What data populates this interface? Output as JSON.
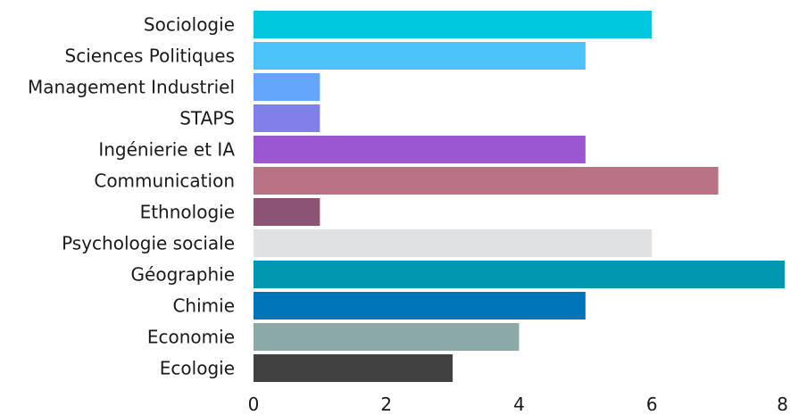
{
  "chart_data": {
    "type": "bar",
    "orientation": "horizontal",
    "categories": [
      "Sociologie",
      "Sciences Politiques",
      "Management Industriel",
      "STAPS",
      "Ingénierie et IA",
      "Communication",
      "Ethnologie",
      "Psychologie sociale",
      "Géographie",
      "Chimie",
      "Economie",
      "Ecologie"
    ],
    "values": [
      6,
      5,
      1,
      1,
      5,
      7,
      1,
      6,
      8,
      5,
      4,
      3
    ],
    "colors": [
      "#00c9df",
      "#4cc4fa",
      "#63a6fb",
      "#8180e9",
      "#9b57cf",
      "#b97385",
      "#8d5375",
      "#e0e1e3",
      "#0097b1",
      "#0075b9",
      "#8aa9a7",
      "#414141"
    ],
    "xlim": [
      0,
      8
    ],
    "xticks": [
      0,
      2,
      4,
      6,
      8
    ],
    "grid": false,
    "legend": "none",
    "title": "",
    "xlabel": "",
    "ylabel": ""
  }
}
